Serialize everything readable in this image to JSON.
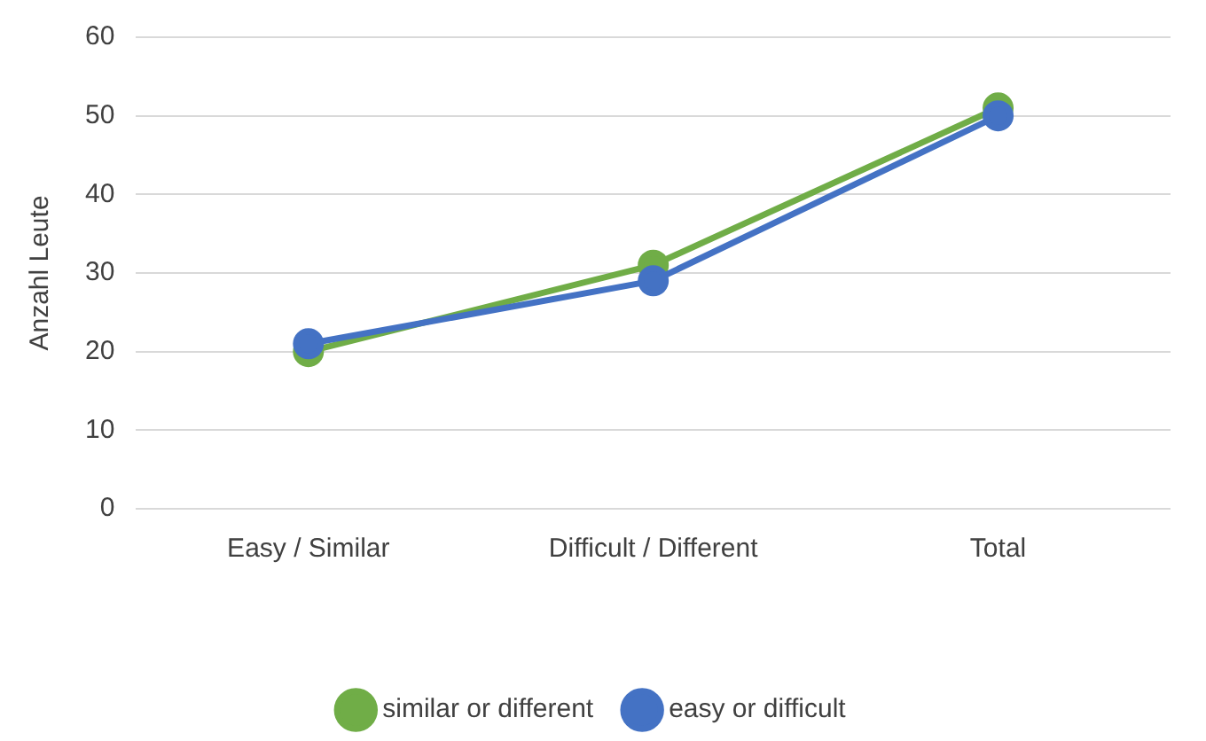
{
  "chart_data": {
    "type": "line",
    "ylabel": "Anzahl Leute",
    "categories": [
      "Easy / Similar",
      "Difficult / Different",
      "Total"
    ],
    "series": [
      {
        "name": "similar or different",
        "color": "#70ad47",
        "values": [
          20,
          31,
          51
        ]
      },
      {
        "name": "easy or difficult",
        "color": "#4472c4",
        "values": [
          21,
          29,
          50
        ]
      }
    ],
    "ylim": [
      0,
      60
    ],
    "yticks": [
      0,
      10,
      20,
      30,
      40,
      50,
      60
    ],
    "grid": "y",
    "legend": "bottom",
    "marker": "circle",
    "line_style": "solid"
  }
}
